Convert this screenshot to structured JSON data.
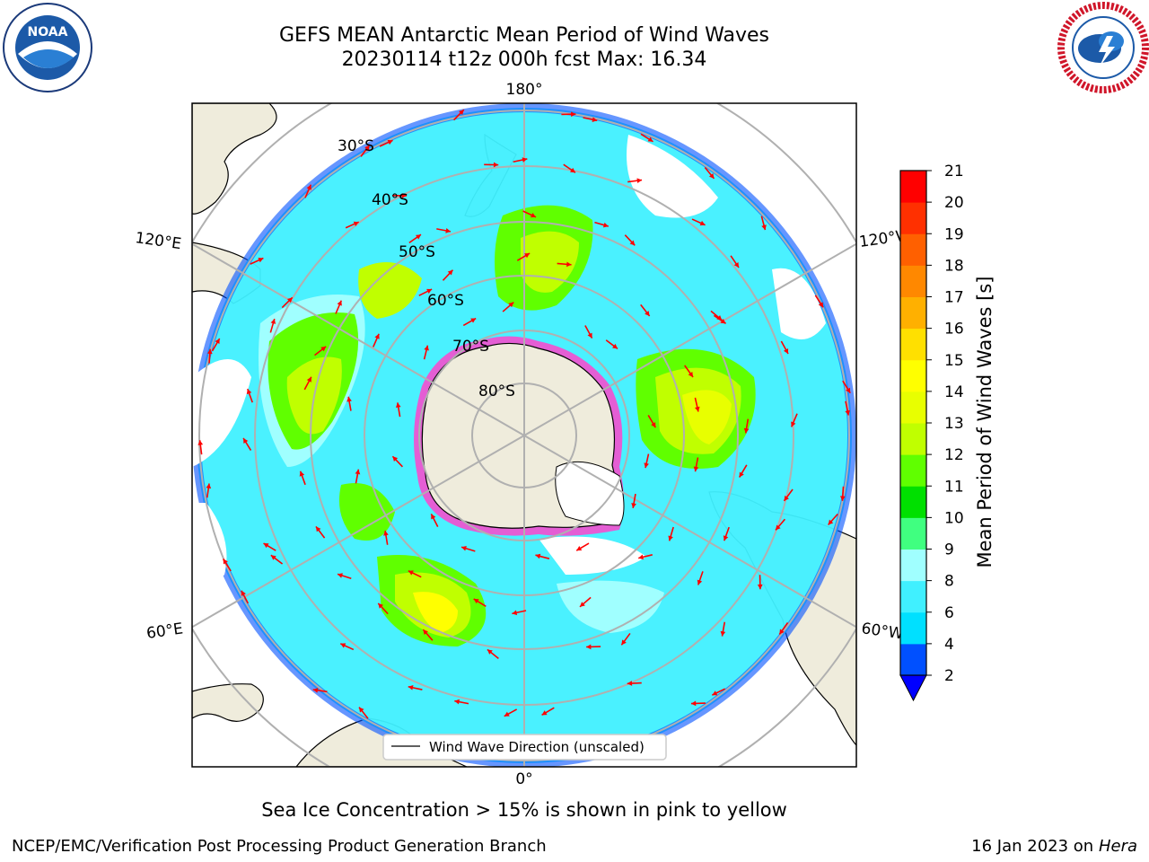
{
  "header": {
    "title_line1": "GEFS MEAN Antarctic Mean Period of Wind Waves",
    "title_line2": "20230114 t12z 000h fcst   Max: 16.34"
  },
  "logos": {
    "noaa": {
      "name": "noaa-logo",
      "text": "NOAA"
    },
    "nws": {
      "name": "nws-logo"
    }
  },
  "map": {
    "longitude_labels": [
      "180°",
      "120°E",
      "120°W",
      "60°E",
      "60°W",
      "0°"
    ],
    "latitude_labels": [
      "30°S",
      "40°S",
      "50°S",
      "60°S",
      "70°S",
      "80°S"
    ],
    "legend_label": "Wind Wave Direction (unscaled)"
  },
  "colorbar": {
    "label": "Mean Period of Wind Waves [s]",
    "ticks": [
      "2",
      "4",
      "6",
      "8",
      "9",
      "10",
      "11",
      "12",
      "13",
      "14",
      "15",
      "16",
      "17",
      "18",
      "19",
      "20",
      "21"
    ],
    "colors": [
      "#0050ff",
      "#00e0ff",
      "#40f0ff",
      "#a0ffff",
      "#40ff80",
      "#00e000",
      "#60ff00",
      "#c0ff00",
      "#e8ff00",
      "#ffff00",
      "#ffe000",
      "#ffb000",
      "#ff8800",
      "#ff6000",
      "#ff3000",
      "#ff0000"
    ],
    "extend_color": "#0000ff"
  },
  "colors": {
    "land": "#efecdc",
    "ocean_blank": "#ffffff",
    "ice_edge": "#ff44cc",
    "arrow": "#ff0000",
    "grid": "#b0b0b0"
  },
  "note": "Sea Ice Concentration > 15% is shown in pink to yellow",
  "footer": {
    "left": "NCEP/EMC/Verification Post Processing Product Generation Branch",
    "right_date": "16 Jan 2023 on",
    "right_host": "Hera"
  }
}
